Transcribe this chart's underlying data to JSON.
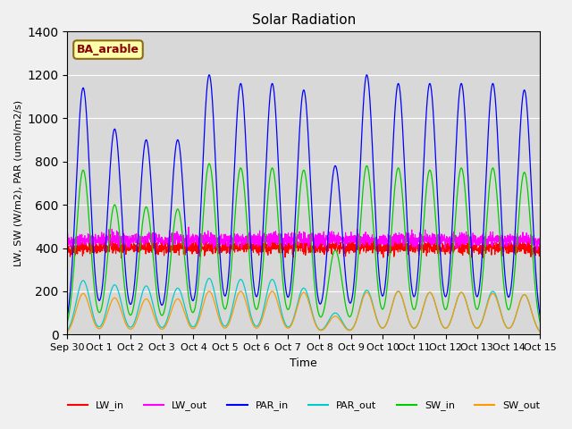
{
  "title": "Solar Radiation",
  "ylabel": "LW, SW (W/m2), PAR (umol/m2/s)",
  "xlabel": "Time",
  "ylim": [
    0,
    1400
  ],
  "annotation": "BA_arable",
  "bg_color": "#e8e8e8",
  "plot_bg_color": "#d8d8d8",
  "colors": {
    "LW_in": "#ff0000",
    "LW_out": "#ff00ff",
    "PAR_in": "#0000ff",
    "PAR_out": "#00cccc",
    "SW_in": "#00cc00",
    "SW_out": "#ff9900"
  },
  "x_tick_labels": [
    "Sep 30",
    "Oct 1",
    "Oct 2",
    "Oct 3",
    "Oct 4",
    "Oct 5",
    "Oct 6",
    "Oct 7",
    "Oct 8",
    "Oct 9",
    "Oct 10",
    "Oct 11",
    "Oct 12",
    "Oct 13",
    "Oct 14",
    "Oct 15"
  ],
  "n_days": 16,
  "start_day": 0,
  "PAR_in_peaks": [
    1140,
    950,
    900,
    900,
    1200,
    1160,
    1160,
    1130,
    780,
    1200,
    1160,
    1160,
    1160,
    1160,
    1130
  ],
  "SW_in_peaks": [
    760,
    600,
    590,
    580,
    790,
    770,
    770,
    760,
    390,
    780,
    770,
    760,
    770,
    770,
    750
  ],
  "SW_out_peaks": [
    190,
    170,
    165,
    165,
    200,
    200,
    200,
    195,
    85,
    195,
    200,
    195,
    195,
    190,
    185
  ],
  "PAR_out_peaks": [
    250,
    230,
    225,
    215,
    260,
    255,
    255,
    215,
    100,
    205,
    200,
    195,
    195,
    200,
    185
  ],
  "LW_in_base": 370,
  "LW_out_base": 400
}
